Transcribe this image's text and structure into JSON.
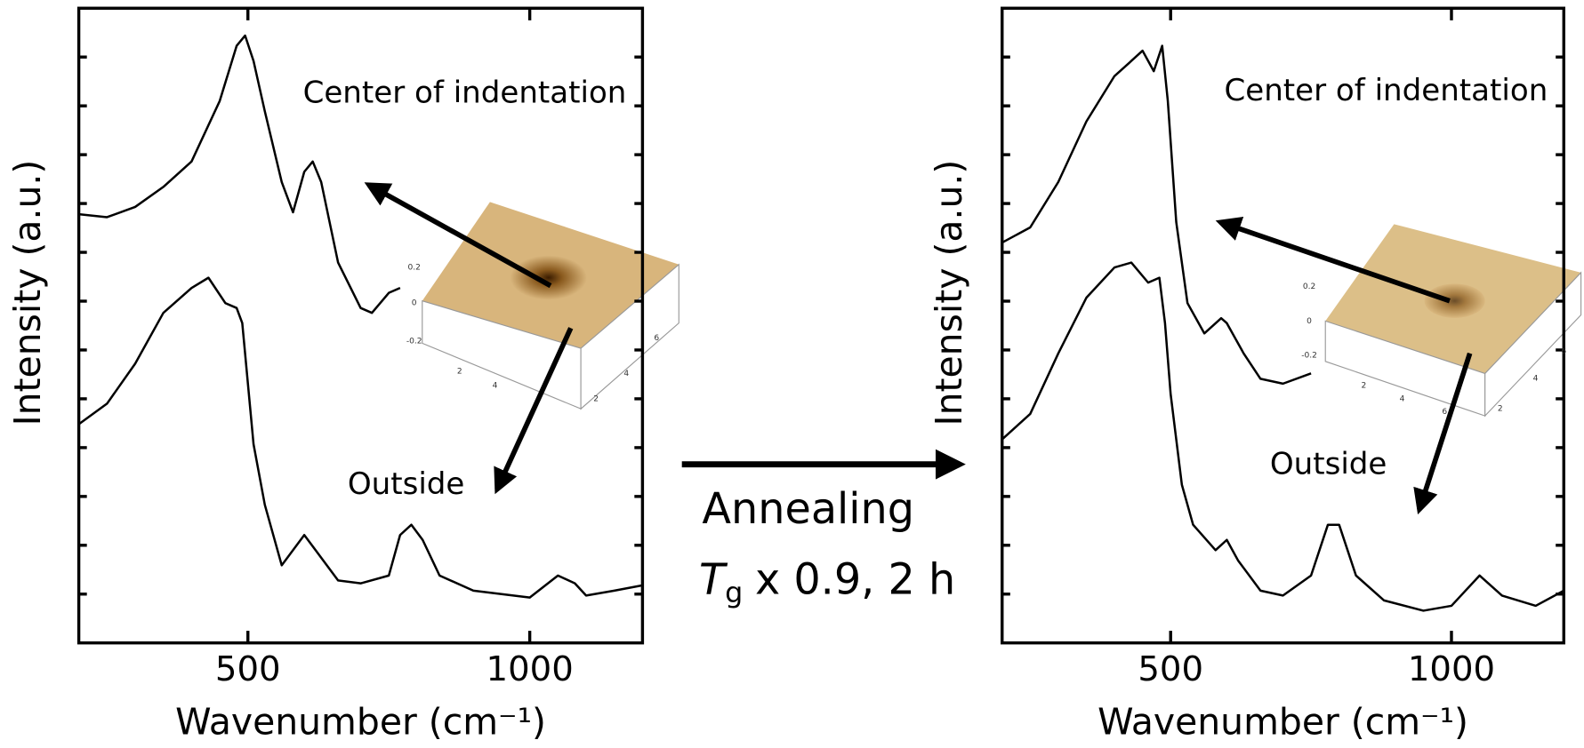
{
  "chart_data": [
    {
      "type": "line",
      "xlabel": "Wavenumber (cm⁻¹)",
      "ylabel": "Intensity (a.u.)",
      "xlim": [
        200,
        1200
      ],
      "xticks": [
        500,
        1000
      ],
      "ylim": [
        0,
        13
      ],
      "yticks": [
        1,
        2,
        3,
        4,
        5,
        6,
        7,
        8,
        9,
        10,
        11,
        12
      ],
      "series": [
        {
          "name": "Center of indentation",
          "color": "#000000",
          "x": [
            200,
            250,
            300,
            350,
            400,
            450,
            480,
            495,
            510,
            530,
            560,
            580,
            600,
            615,
            630,
            660,
            700,
            720,
            750,
            770
          ],
          "values": [
            8.78,
            8.72,
            8.93,
            9.34,
            9.86,
            11.1,
            12.23,
            12.44,
            11.92,
            10.89,
            9.44,
            8.82,
            9.65,
            9.86,
            9.44,
            7.79,
            6.86,
            6.76,
            7.17,
            7.27
          ]
        },
        {
          "name": "Outside",
          "color": "#000000",
          "x": [
            200,
            250,
            300,
            350,
            400,
            430,
            460,
            480,
            490,
            500,
            510,
            530,
            560,
            600,
            620,
            660,
            700,
            750,
            770,
            790,
            810,
            840,
            900,
            1000,
            1050,
            1080,
            1100,
            1150,
            1200
          ],
          "values": [
            4.48,
            4.9,
            5.72,
            6.76,
            7.27,
            7.48,
            6.96,
            6.86,
            6.55,
            5.31,
            4.07,
            2.83,
            1.59,
            2.21,
            1.9,
            1.28,
            1.22,
            1.38,
            2.21,
            2.42,
            2.11,
            1.38,
            1.07,
            0.93,
            1.38,
            1.22,
            0.97,
            1.07,
            1.18
          ]
        }
      ],
      "inset": {
        "z_labels": [
          "0.2",
          "0",
          "-0.2"
        ],
        "x_labels": [
          "2",
          "4"
        ],
        "y_labels": [
          "2",
          "4",
          "6"
        ]
      }
    },
    {
      "type": "line",
      "xlabel": "Wavenumber (cm⁻¹)",
      "ylabel": "Intensity (a.u.)",
      "xlim": [
        200,
        1200
      ],
      "xticks": [
        500,
        1000
      ],
      "ylim": [
        0,
        13
      ],
      "yticks": [
        1,
        2,
        3,
        4,
        5,
        6,
        7,
        8,
        9,
        10,
        11,
        12
      ],
      "series": [
        {
          "name": "Center of indentation",
          "color": "#000000",
          "x": [
            200,
            250,
            300,
            350,
            400,
            430,
            450,
            470,
            485,
            495,
            510,
            530,
            560,
            590,
            600,
            630,
            660,
            700,
            750
          ],
          "values": [
            8.2,
            8.51,
            9.44,
            10.68,
            11.61,
            11.92,
            12.13,
            11.71,
            12.23,
            11.1,
            8.62,
            6.96,
            6.34,
            6.65,
            6.55,
            5.93,
            5.41,
            5.31,
            5.52
          ]
        },
        {
          "name": "Outside",
          "color": "#000000",
          "x": [
            200,
            250,
            300,
            350,
            400,
            430,
            460,
            480,
            490,
            500,
            520,
            540,
            580,
            600,
            620,
            660,
            700,
            750,
            780,
            800,
            830,
            880,
            950,
            1000,
            1050,
            1090,
            1150,
            1200
          ],
          "values": [
            4.17,
            4.69,
            5.93,
            7.07,
            7.69,
            7.79,
            7.38,
            7.48,
            6.55,
            5.1,
            3.24,
            2.42,
            1.9,
            2.11,
            1.69,
            1.07,
            0.97,
            1.38,
            2.42,
            2.42,
            1.38,
            0.87,
            0.66,
            0.76,
            1.38,
            0.97,
            0.76,
            1.07
          ]
        }
      ],
      "inset": {
        "z_labels": [
          "0.2",
          "0",
          "-0.2"
        ],
        "x_labels": [
          "2",
          "4",
          "6"
        ],
        "y_labels": [
          "2",
          "4",
          "6"
        ]
      }
    }
  ],
  "annealing": {
    "label": "Annealing",
    "symbol": "T",
    "subscript": "g",
    "condition": "x 0.9, 2 h"
  }
}
